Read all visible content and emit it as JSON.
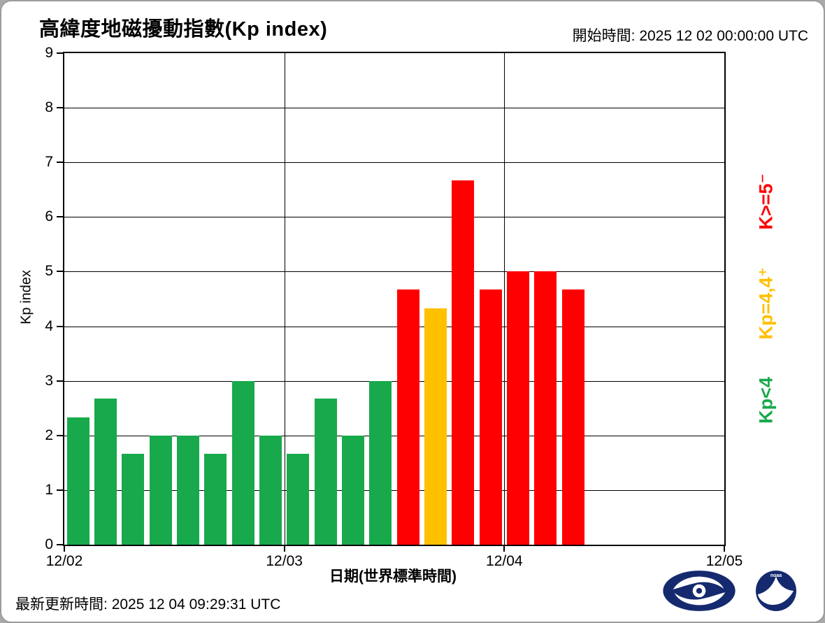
{
  "header": {
    "title": "高緯度地磁擾動指數(Kp index)",
    "start_time_label": "開始時間:",
    "start_time_value": "2025 12 02 00:00:00 UTC"
  },
  "footer": {
    "updated_label": "最新更新時間:",
    "updated_value": "2025 12 04 09:29:31 UTC"
  },
  "legend": {
    "green_label": "Kp<4",
    "yellow_label": "Kp=4,4⁺",
    "red_label": "K>=5⁻"
  },
  "logos": {
    "left": "cwb-typhoon-logo",
    "right": "noaa-logo"
  },
  "chart_data": {
    "type": "bar",
    "title": "高緯度地磁擾動指數(Kp index)",
    "xlabel": "日期(世界標準時間)",
    "ylabel": "Kp index",
    "ylim": [
      0,
      9
    ],
    "yticks": [
      0,
      1,
      2,
      3,
      4,
      5,
      6,
      7,
      8,
      9
    ],
    "x_tick_labels": [
      "12/02",
      "12/03",
      "12/04",
      "12/05"
    ],
    "bar_interval_hours": 3,
    "bars_per_day": 8,
    "total_slots": 24,
    "values": [
      2.33,
      2.67,
      1.67,
      2,
      2,
      1.67,
      3,
      2,
      1.67,
      2.67,
      2,
      3,
      4.67,
      4.33,
      6.67,
      4.67,
      5,
      5,
      4.67
    ],
    "thresholds": {
      "yellow_min": 4,
      "red_min": 4.67
    },
    "colors": {
      "green": "#17a94b",
      "yellow": "#ffc000",
      "red": "#ff0000"
    },
    "grid": true,
    "legend_position": "right-rotated"
  }
}
